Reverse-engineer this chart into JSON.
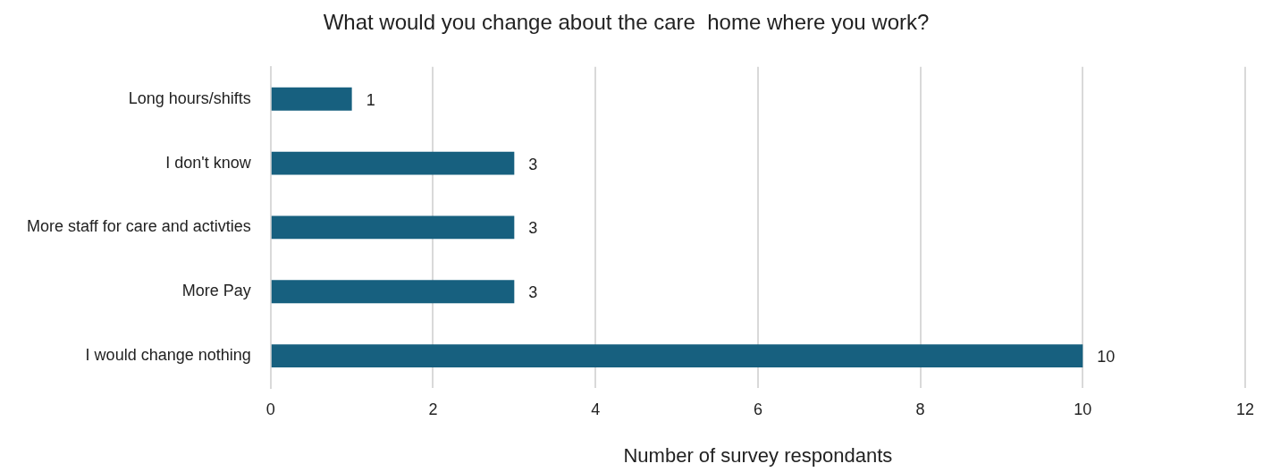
{
  "chart_data": {
    "type": "bar",
    "orientation": "horizontal",
    "title": "What would you change about the care  home where you work?",
    "xlabel": "Number of survey respondants",
    "categories": [
      "Long hours/shifts",
      "I don't know",
      "More staff for care and activties",
      "More Pay",
      "I would change nothing"
    ],
    "values": [
      1,
      3,
      3,
      3,
      10
    ],
    "color": "#17607f",
    "xlim": [
      0,
      12
    ],
    "xticks": [
      0,
      2,
      4,
      6,
      8,
      10,
      12
    ],
    "grid": "x",
    "data_labels": true,
    "legend": false
  }
}
